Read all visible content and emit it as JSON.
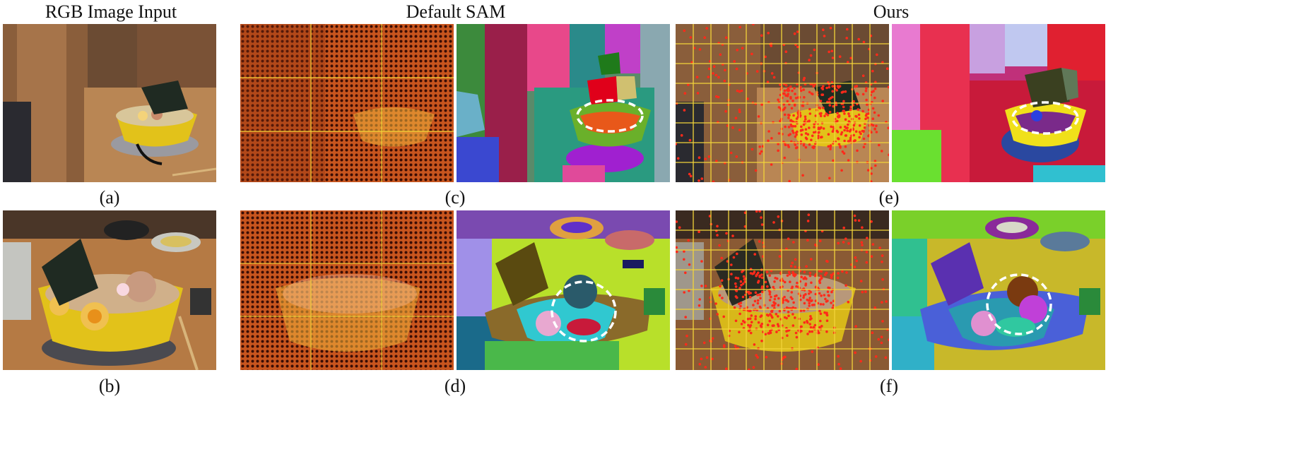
{
  "headers": {
    "input": "RGB Image Input",
    "default_sam": "Default SAM",
    "ours": "Ours"
  },
  "labels": {
    "a": "(a)",
    "b": "(b)",
    "c": "(c)",
    "d": "(d)",
    "e": "(e)",
    "f": "(f)"
  },
  "colors": {
    "grid_line": "#f2d43a",
    "point_dense": "#e8461e",
    "point_sparse": "#ff2a1a",
    "highlight_ellipse": "#ffffff",
    "bowl_yellow": "#e2c21a",
    "wood": "#b57a44"
  }
}
